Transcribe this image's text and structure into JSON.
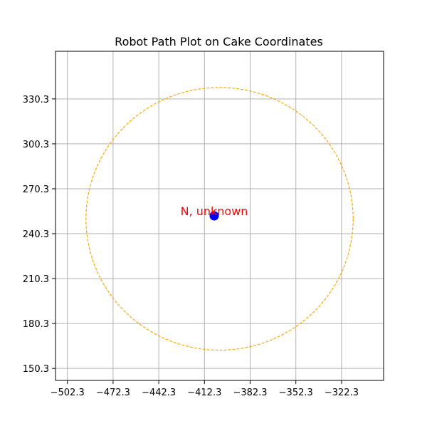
{
  "chart_data": {
    "type": "scatter",
    "title": "Robot Path Plot on Cake Coordinates",
    "xlabel": "",
    "ylabel": "",
    "xlim": [
      -510.1,
      -294.7
    ],
    "ylim": [
      142.3,
      362.1
    ],
    "x_ticks": [
      -502.3,
      -472.3,
      -442.3,
      -412.3,
      -382.3,
      -352.3,
      -322.3
    ],
    "x_tick_labels": [
      "−502.3",
      "−472.3",
      "−442.3",
      "−412.3",
      "−382.3",
      "−352.3",
      "−322.3"
    ],
    "y_ticks": [
      150.3,
      180.3,
      210.3,
      240.3,
      270.3,
      300.3,
      330.3
    ],
    "y_tick_labels": [
      "150.3",
      "180.3",
      "210.3",
      "240.3",
      "270.3",
      "300.3",
      "330.3"
    ],
    "grid": true,
    "points": [
      {
        "x": -405.9,
        "y": 252.2,
        "color": "#0000ff"
      }
    ],
    "annotations": [
      {
        "text": "N, unknown",
        "x": -405.9,
        "y": 252.2,
        "color": "#ff0000"
      }
    ],
    "circle": {
      "center": [
        -402.4,
        250.2
      ],
      "radius": 87.7,
      "color": "#ffa500",
      "linestyle": "dashed"
    }
  }
}
